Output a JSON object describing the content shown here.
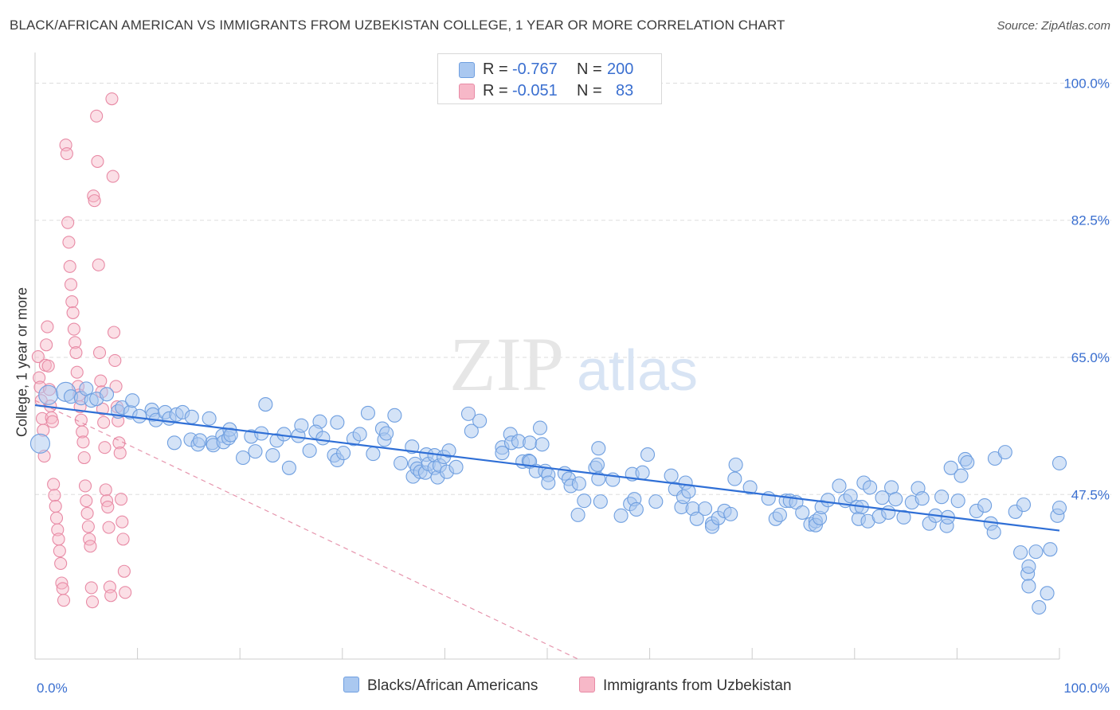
{
  "title": "BLACK/AFRICAN AMERICAN VS IMMIGRANTS FROM UZBEKISTAN COLLEGE, 1 YEAR OR MORE CORRELATION CHART",
  "source": "Source: ZipAtlas.com",
  "watermark": {
    "zip": "ZIP",
    "atlas": "atlas"
  },
  "legend_top": {
    "rows": [
      {
        "r_label": "R = ",
        "r_value": "-0.767",
        "n_label": "N = ",
        "n_value": "200",
        "color": "#aac8f0"
      },
      {
        "r_label": "R = ",
        "r_value": "-0.051",
        "n_label": "N = ",
        "n_value": "83",
        "color": "#f7b8c8"
      }
    ]
  },
  "bottom_legend": {
    "blue_label": "Blacks/African Americans",
    "pink_label": "Immigrants from Uzbekistan"
  },
  "colors": {
    "blue_fill": "#aac8f0",
    "blue_stroke": "#6f9fe0",
    "blue_line": "#2f6fd6",
    "pink_fill": "#f7b8c8",
    "pink_stroke": "#e88aa5",
    "pink_line": "#e07a99",
    "grid": "#dddddd",
    "tick_text": "#3a6fd0"
  },
  "chart_data": {
    "type": "scatter",
    "title": "BLACK/AFRICAN AMERICAN VS IMMIGRANTS FROM UZBEKISTAN COLLEGE, 1 YEAR OR MORE CORRELATION CHART",
    "xlabel": "",
    "ylabel": "College, 1 year or more",
    "xlim": [
      0,
      100
    ],
    "ylim": [
      26.5,
      103.5
    ],
    "x_tick_labels": [
      "0.0%",
      "100.0%"
    ],
    "y_ticks": [
      47.5,
      65.0,
      82.5,
      100.0
    ],
    "y_tick_labels": [
      "47.5%",
      "65.0%",
      "82.5%",
      "100.0%"
    ],
    "grid": true,
    "legend_position": "top-center",
    "series": [
      {
        "name": "Blacks/African Americans",
        "R": -0.767,
        "N": 200,
        "trend": {
          "x": [
            0,
            100
          ],
          "y": [
            58.9,
            42.9
          ]
        },
        "points": [
          [
            0.5,
            54.0
          ],
          [
            1.3,
            60.2
          ],
          [
            3.0,
            60.6
          ],
          [
            3.5,
            60.0
          ],
          [
            4.5,
            59.8
          ],
          [
            5.0,
            61.0
          ],
          [
            5.5,
            59.5
          ],
          [
            6.0,
            59.7
          ],
          [
            7.0,
            60.3
          ],
          [
            8.1,
            58.1
          ],
          [
            8.5,
            58.6
          ],
          [
            9.3,
            58.0
          ],
          [
            9.5,
            59.5
          ],
          [
            10.2,
            57.5
          ],
          [
            11.4,
            58.3
          ],
          [
            11.5,
            57.7
          ],
          [
            11.8,
            57.0
          ],
          [
            12.7,
            58.0
          ],
          [
            13.1,
            57.2
          ],
          [
            13.6,
            54.1
          ],
          [
            13.8,
            57.7
          ],
          [
            14.4,
            58.0
          ],
          [
            15.2,
            54.5
          ],
          [
            15.3,
            57.4
          ],
          [
            15.9,
            53.9
          ],
          [
            16.1,
            54.4
          ],
          [
            17.0,
            57.2
          ],
          [
            17.3,
            54.1
          ],
          [
            17.4,
            53.8
          ],
          [
            18.3,
            55.0
          ],
          [
            18.4,
            54.2
          ],
          [
            18.9,
            54.7
          ],
          [
            19.0,
            55.8
          ],
          [
            19.1,
            55.1
          ],
          [
            20.3,
            52.2
          ],
          [
            21.1,
            54.9
          ],
          [
            21.5,
            53.0
          ],
          [
            22.1,
            55.3
          ],
          [
            22.5,
            59.0
          ],
          [
            23.2,
            52.5
          ],
          [
            23.6,
            54.4
          ],
          [
            24.3,
            55.2
          ],
          [
            24.8,
            50.9
          ],
          [
            25.7,
            55.0
          ],
          [
            26.0,
            56.3
          ],
          [
            26.8,
            53.1
          ],
          [
            27.8,
            56.8
          ],
          [
            27.4,
            55.5
          ],
          [
            28.1,
            54.7
          ],
          [
            29.2,
            52.5
          ],
          [
            29.5,
            51.9
          ],
          [
            29.5,
            56.7
          ],
          [
            30.1,
            52.8
          ],
          [
            31.1,
            54.6
          ],
          [
            31.7,
            55.2
          ],
          [
            32.5,
            57.9
          ],
          [
            33.0,
            52.7
          ],
          [
            33.9,
            55.9
          ],
          [
            34.1,
            54.5
          ],
          [
            34.3,
            55.3
          ],
          [
            35.1,
            57.6
          ],
          [
            35.7,
            51.5
          ],
          [
            36.8,
            53.6
          ],
          [
            37.1,
            51.4
          ],
          [
            36.9,
            49.8
          ],
          [
            37.3,
            50.8
          ],
          [
            37.6,
            50.4
          ],
          [
            38.1,
            50.3
          ],
          [
            38.2,
            52.6
          ],
          [
            38.4,
            51.4
          ],
          [
            39.0,
            52.5
          ],
          [
            39.0,
            50.9
          ],
          [
            39.3,
            49.7
          ],
          [
            39.5,
            51.2
          ],
          [
            39.9,
            52.3
          ],
          [
            40.2,
            50.4
          ],
          [
            40.4,
            53.1
          ],
          [
            41.1,
            51.0
          ],
          [
            42.3,
            57.8
          ],
          [
            42.6,
            55.6
          ],
          [
            43.4,
            56.9
          ],
          [
            45.6,
            53.5
          ],
          [
            45.6,
            52.8
          ],
          [
            46.4,
            55.2
          ],
          [
            46.5,
            54.1
          ],
          [
            47.2,
            54.3
          ],
          [
            47.6,
            51.7
          ],
          [
            48.2,
            51.8
          ],
          [
            48.3,
            54.1
          ],
          [
            48.3,
            51.7
          ],
          [
            48.9,
            50.5
          ],
          [
            49.3,
            56.0
          ],
          [
            49.5,
            53.9
          ],
          [
            49.8,
            50.5
          ],
          [
            50.1,
            50.0
          ],
          [
            50.1,
            49.0
          ],
          [
            51.7,
            50.2
          ],
          [
            52.1,
            49.5
          ],
          [
            52.3,
            48.6
          ],
          [
            53.0,
            44.9
          ],
          [
            53.1,
            48.9
          ],
          [
            53.6,
            46.7
          ],
          [
            54.7,
            50.9
          ],
          [
            54.9,
            51.3
          ],
          [
            55.0,
            49.5
          ],
          [
            55.0,
            53.4
          ],
          [
            55.2,
            46.6
          ],
          [
            56.4,
            49.4
          ],
          [
            57.2,
            44.8
          ],
          [
            58.1,
            46.3
          ],
          [
            58.3,
            50.1
          ],
          [
            58.5,
            46.9
          ],
          [
            58.7,
            45.6
          ],
          [
            59.3,
            50.3
          ],
          [
            59.8,
            52.6
          ],
          [
            60.6,
            46.6
          ],
          [
            62.1,
            49.9
          ],
          [
            62.5,
            48.2
          ],
          [
            63.1,
            45.9
          ],
          [
            63.3,
            47.2
          ],
          [
            63.5,
            49.0
          ],
          [
            63.8,
            47.9
          ],
          [
            64.2,
            45.7
          ],
          [
            64.6,
            44.4
          ],
          [
            65.4,
            45.7
          ],
          [
            66.1,
            43.8
          ],
          [
            66.1,
            43.4
          ],
          [
            66.7,
            44.5
          ],
          [
            67.3,
            45.4
          ],
          [
            67.9,
            45.0
          ],
          [
            68.3,
            49.5
          ],
          [
            68.4,
            51.3
          ],
          [
            69.8,
            48.4
          ],
          [
            71.6,
            47.0
          ],
          [
            72.3,
            44.4
          ],
          [
            72.7,
            44.9
          ],
          [
            73.3,
            46.7
          ],
          [
            73.7,
            46.7
          ],
          [
            74.3,
            46.5
          ],
          [
            74.9,
            45.2
          ],
          [
            75.7,
            43.7
          ],
          [
            76.2,
            44.1
          ],
          [
            76.2,
            43.6
          ],
          [
            76.6,
            44.5
          ],
          [
            76.8,
            45.9
          ],
          [
            77.4,
            46.8
          ],
          [
            78.5,
            48.6
          ],
          [
            79.1,
            46.7
          ],
          [
            79.6,
            47.3
          ],
          [
            80.2,
            45.9
          ],
          [
            80.4,
            44.4
          ],
          [
            80.7,
            45.9
          ],
          [
            80.9,
            49.0
          ],
          [
            81.3,
            44.1
          ],
          [
            81.5,
            48.4
          ],
          [
            82.4,
            44.7
          ],
          [
            82.7,
            47.1
          ],
          [
            83.3,
            45.2
          ],
          [
            83.6,
            48.4
          ],
          [
            84.0,
            46.9
          ],
          [
            84.8,
            44.6
          ],
          [
            85.6,
            46.5
          ],
          [
            86.2,
            48.3
          ],
          [
            86.6,
            47.0
          ],
          [
            87.3,
            43.8
          ],
          [
            87.9,
            44.8
          ],
          [
            88.5,
            47.2
          ],
          [
            89.0,
            43.5
          ],
          [
            89.1,
            44.6
          ],
          [
            89.4,
            50.9
          ],
          [
            90.1,
            46.7
          ],
          [
            90.4,
            49.9
          ],
          [
            90.8,
            52.0
          ],
          [
            91.0,
            51.6
          ],
          [
            91.9,
            45.4
          ],
          [
            92.7,
            46.1
          ],
          [
            93.3,
            43.8
          ],
          [
            93.6,
            42.7
          ],
          [
            93.7,
            52.1
          ],
          [
            94.7,
            52.9
          ],
          [
            95.7,
            45.3
          ],
          [
            96.2,
            40.1
          ],
          [
            96.5,
            46.2
          ],
          [
            96.9,
            37.4
          ],
          [
            97.0,
            35.8
          ],
          [
            97.0,
            38.3
          ],
          [
            97.7,
            40.2
          ],
          [
            98.0,
            33.1
          ],
          [
            98.8,
            34.9
          ],
          [
            99.1,
            40.5
          ],
          [
            99.8,
            44.8
          ],
          [
            100.0,
            45.8
          ],
          [
            100.0,
            51.5
          ]
        ]
      },
      {
        "name": "Immigrants from Uzbekistan",
        "R": -0.051,
        "N": 83,
        "trend": {
          "x": [
            0,
            53
          ],
          "y": [
            59.5,
            26.5
          ]
        },
        "points": [
          [
            0.3,
            65.1
          ],
          [
            0.4,
            62.4
          ],
          [
            0.5,
            61.2
          ],
          [
            0.6,
            59.5
          ],
          [
            0.7,
            57.2
          ],
          [
            0.8,
            55.7
          ],
          [
            0.9,
            52.4
          ],
          [
            1.0,
            64.0
          ],
          [
            1.1,
            66.6
          ],
          [
            1.2,
            68.9
          ],
          [
            1.3,
            63.9
          ],
          [
            1.4,
            60.9
          ],
          [
            1.5,
            58.8
          ],
          [
            1.6,
            57.3
          ],
          [
            1.7,
            56.8
          ],
          [
            1.8,
            48.8
          ],
          [
            1.9,
            47.4
          ],
          [
            2.0,
            46.0
          ],
          [
            2.1,
            44.5
          ],
          [
            2.2,
            43.0
          ],
          [
            2.3,
            41.8
          ],
          [
            2.4,
            40.3
          ],
          [
            2.5,
            38.7
          ],
          [
            2.6,
            36.2
          ],
          [
            2.7,
            35.5
          ],
          [
            2.8,
            34.0
          ],
          [
            3.0,
            92.1
          ],
          [
            3.1,
            91.0
          ],
          [
            3.2,
            82.2
          ],
          [
            3.3,
            79.7
          ],
          [
            3.4,
            76.6
          ],
          [
            3.5,
            74.3
          ],
          [
            3.6,
            72.1
          ],
          [
            3.7,
            70.7
          ],
          [
            3.8,
            68.6
          ],
          [
            3.9,
            66.9
          ],
          [
            4.0,
            65.6
          ],
          [
            4.1,
            63.1
          ],
          [
            4.2,
            61.3
          ],
          [
            4.3,
            60.2
          ],
          [
            4.4,
            58.7
          ],
          [
            4.5,
            57.0
          ],
          [
            4.6,
            55.5
          ],
          [
            4.7,
            54.2
          ],
          [
            4.8,
            52.2
          ],
          [
            4.9,
            48.6
          ],
          [
            5.0,
            46.7
          ],
          [
            5.1,
            45.1
          ],
          [
            5.2,
            43.4
          ],
          [
            5.3,
            41.8
          ],
          [
            5.4,
            40.9
          ],
          [
            5.5,
            35.6
          ],
          [
            5.6,
            33.8
          ],
          [
            5.7,
            85.6
          ],
          [
            5.8,
            85.0
          ],
          [
            6.0,
            95.8
          ],
          [
            6.1,
            90.0
          ],
          [
            6.2,
            76.8
          ],
          [
            6.3,
            65.6
          ],
          [
            6.4,
            62.0
          ],
          [
            6.5,
            60.6
          ],
          [
            6.6,
            58.4
          ],
          [
            6.7,
            56.7
          ],
          [
            6.8,
            53.5
          ],
          [
            6.9,
            48.1
          ],
          [
            7.0,
            46.7
          ],
          [
            7.1,
            45.9
          ],
          [
            7.2,
            43.3
          ],
          [
            7.3,
            35.7
          ],
          [
            7.4,
            34.6
          ],
          [
            7.5,
            98.0
          ],
          [
            7.6,
            88.1
          ],
          [
            7.7,
            68.2
          ],
          [
            7.8,
            64.6
          ],
          [
            7.9,
            61.3
          ],
          [
            8.0,
            58.7
          ],
          [
            8.1,
            56.9
          ],
          [
            8.2,
            54.1
          ],
          [
            8.3,
            52.8
          ],
          [
            8.4,
            46.9
          ],
          [
            8.5,
            44.0
          ],
          [
            8.6,
            41.8
          ],
          [
            8.7,
            37.7
          ],
          [
            8.8,
            35.0
          ]
        ]
      }
    ]
  }
}
